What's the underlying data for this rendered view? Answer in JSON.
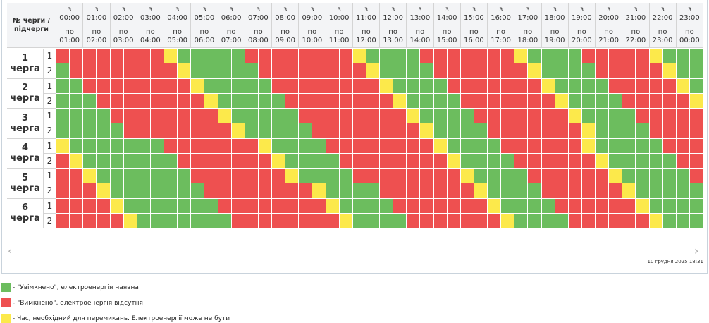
{
  "header": {
    "corner": "№ черги / підчерги",
    "from_prefix": "з",
    "to_prefix": "по",
    "slots": [
      {
        "from": "00:00",
        "to": "01:00"
      },
      {
        "from": "01:00",
        "to": "02:00"
      },
      {
        "from": "02:00",
        "to": "03:00"
      },
      {
        "from": "03:00",
        "to": "04:00"
      },
      {
        "from": "04:00",
        "to": "05:00"
      },
      {
        "from": "05:00",
        "to": "06:00"
      },
      {
        "from": "06:00",
        "to": "07:00"
      },
      {
        "from": "07:00",
        "to": "08:00"
      },
      {
        "from": "08:00",
        "to": "09:00"
      },
      {
        "from": "09:00",
        "to": "10:00"
      },
      {
        "from": "10:00",
        "to": "11:00"
      },
      {
        "from": "11:00",
        "to": "12:00"
      },
      {
        "from": "12:00",
        "to": "13:00"
      },
      {
        "from": "13:00",
        "to": "14:00"
      },
      {
        "from": "14:00",
        "to": "15:00"
      },
      {
        "from": "15:00",
        "to": "16:00"
      },
      {
        "from": "16:00",
        "to": "17:00"
      },
      {
        "from": "17:00",
        "to": "18:00"
      },
      {
        "from": "18:00",
        "to": "19:00"
      },
      {
        "from": "19:00",
        "to": "20:00"
      },
      {
        "from": "20:00",
        "to": "21:00"
      },
      {
        "from": "21:00",
        "to": "22:00"
      },
      {
        "from": "22:00",
        "to": "23:00"
      },
      {
        "from": "23:00",
        "to": "00:00"
      }
    ]
  },
  "queue_word": "черга",
  "queues": [
    {
      "number": "1",
      "subqueues": [
        {
          "number": "1",
          "cells": "RRRRRRRRYGGGGGRRRRRRRRYGGGGRRRRRRRYGGGGRRRRRYGGG"
        },
        {
          "number": "2",
          "cells": "GRRRRRRRRYGGGGGRRRRRRRRYGGGGRRRRRRRYGGGGRRRRRYGG"
        }
      ]
    },
    {
      "number": "2",
      "subqueues": [
        {
          "number": "1",
          "cells": "GGRRRRRRRRYGGGGGRRRRRRRRYGGGGRRRRRRRYGGGGRRRRRYG"
        },
        {
          "number": "2",
          "cells": "GGGRRRRRRRRYGGGGGRRRRRRRRYGGGGRRRRRRRYGGGGRRRRRY"
        }
      ]
    },
    {
      "number": "3",
      "subqueues": [
        {
          "number": "1",
          "cells": "GGGGRRRRRRRRYGGGGGRRRRRRRRYGGGGRRRRRRRYGGGGRRRRR"
        },
        {
          "number": "2",
          "cells": "GGGGGRRRRRRRRYGGGGGRRRRRRRRYGGGGRRRRRRRYGGGGRRRR"
        }
      ]
    },
    {
      "number": "4",
      "subqueues": [
        {
          "number": "1",
          "cells": "YGGGGGGGRRRRRRRYGGGGRRRRRRRRYGGGGRRRRRRYGGGGGRRR"
        },
        {
          "number": "2",
          "cells": "RYGGGGGGGRRRRRRRYGGGGRRRRRRRRYGGGGRRRRRRYGGGGGRR"
        }
      ]
    },
    {
      "number": "5",
      "subqueues": [
        {
          "number": "1",
          "cells": "RRYGGGGGGGRRRRRRRYGGGGRRRRRRRRYGGGGRRRRRRYGGGGGR"
        },
        {
          "number": "2",
          "cells": "RRRYGGGGGGGRRRRRRRRYGGGGRRRRRRRYGGGGRRRRRRYGGGGG"
        }
      ]
    },
    {
      "number": "6",
      "subqueues": [
        {
          "number": "1",
          "cells": "RRRRYGGGGGGGRRRRRRRRYGGGGRRRRRRRYGGGGRRRRRRYGGGG"
        },
        {
          "number": "2",
          "cells": "RRRRRYGGGGGGGRRRRRRRRYGGGGRRRRRRRYGGGGRRRRRRYGGG"
        }
      ]
    }
  ],
  "status_colors": {
    "G": "#6cbd5e",
    "R": "#ee5050",
    "Y": "#fce94b"
  },
  "timestamp": "10 грудня 2025 18:31",
  "legend": [
    {
      "status": "G",
      "text": "- \"Увімкнено\", електроенергія наявна"
    },
    {
      "status": "R",
      "text": "- \"Вимкнено\", електроенергія відсутня"
    },
    {
      "status": "Y",
      "text": "- Час, необхідний для перемикань. Електроенергії може не бути"
    }
  ]
}
